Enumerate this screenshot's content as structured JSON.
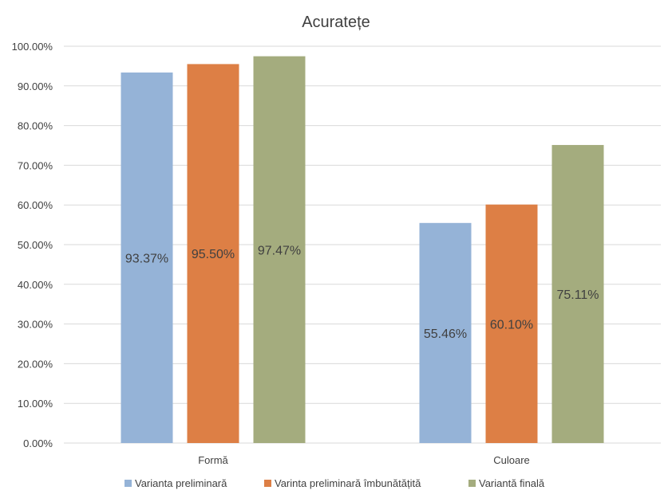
{
  "chart_data": {
    "type": "bar",
    "title": "Acuratețe",
    "xlabel": "",
    "ylabel": "",
    "categories": [
      "Formă",
      "Culoare"
    ],
    "series": [
      {
        "name": "Varianta preliminară",
        "color": "#95b3d7",
        "values": [
          93.37,
          55.46
        ],
        "labels": [
          "93.37%",
          "55.46%"
        ]
      },
      {
        "name": "Varinta preliminară îmbunătățită",
        "color": "#dd7f45",
        "values": [
          95.5,
          60.1
        ],
        "labels": [
          "95.50%",
          "60.10%"
        ]
      },
      {
        "name": "Variantă finală",
        "color": "#a4ac7e",
        "values": [
          97.47,
          75.11
        ],
        "labels": [
          "97.47%",
          "75.11%"
        ]
      }
    ],
    "ylim": [
      0,
      100
    ],
    "yticks": [
      0,
      10,
      20,
      30,
      40,
      50,
      60,
      70,
      80,
      90,
      100
    ],
    "ytick_labels": [
      "0.00%",
      "10.00%",
      "20.00%",
      "30.00%",
      "40.00%",
      "50.00%",
      "60.00%",
      "70.00%",
      "80.00%",
      "90.00%",
      "100.00%"
    ],
    "grid": true,
    "legend_position": "bottom"
  }
}
